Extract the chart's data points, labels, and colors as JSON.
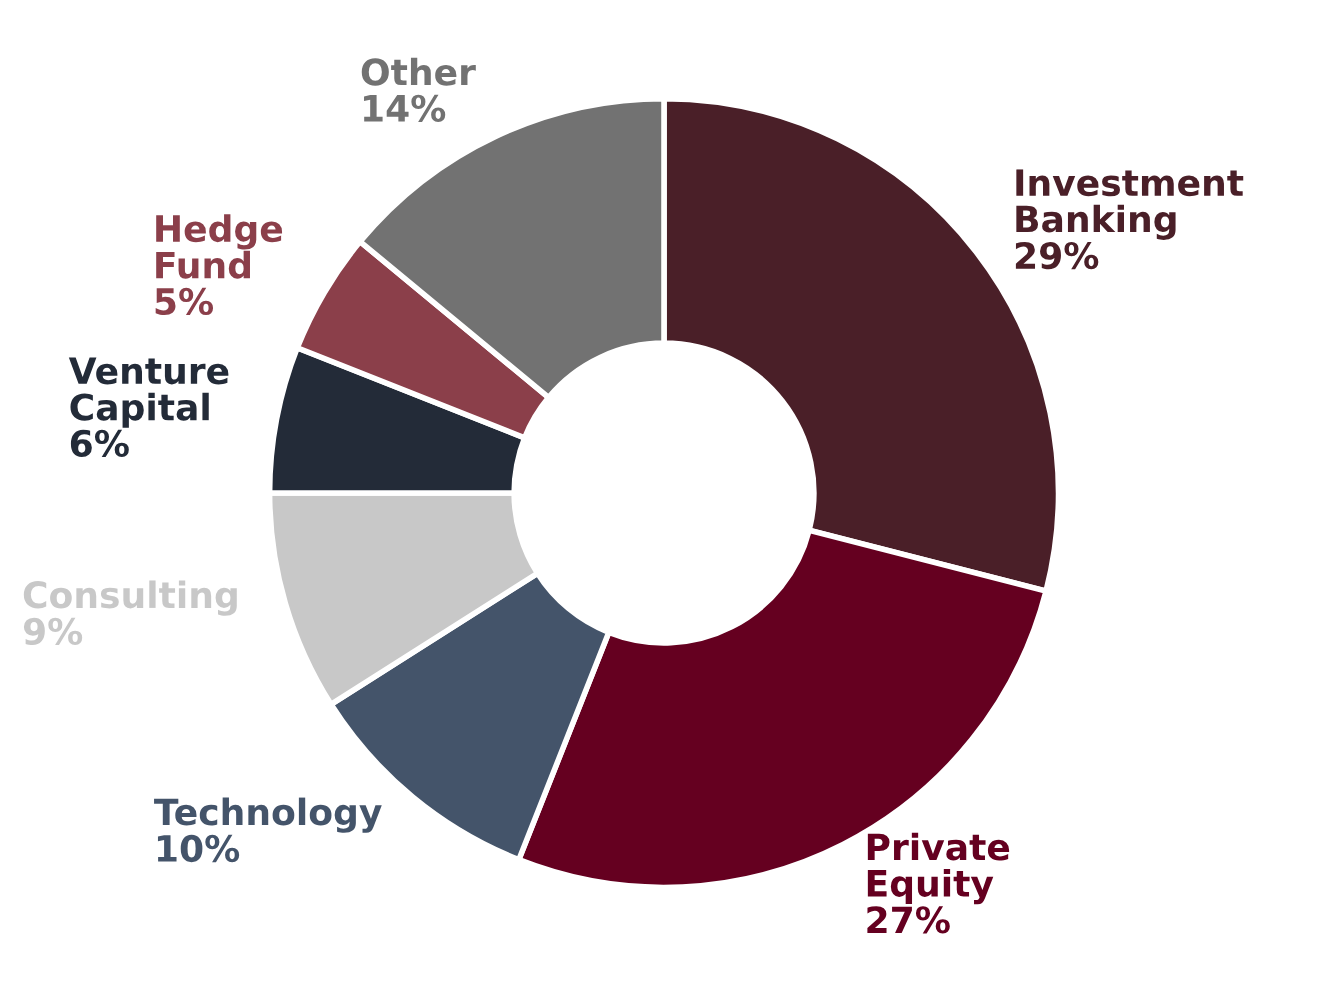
{
  "chart_data": {
    "type": "donut",
    "categories": [
      "Investment Banking",
      "Private Equity",
      "Technology",
      "Consulting",
      "Venture Capital",
      "Hedge Fund",
      "Other"
    ],
    "values": [
      29,
      27,
      10,
      9,
      6,
      5,
      14
    ],
    "value_labels": [
      "29%",
      "27%",
      "10%",
      "9%",
      "6%",
      "5%",
      "14%"
    ],
    "colors": [
      "#4a1f28",
      "#650020",
      "#44546a",
      "#c8c8c8",
      "#232b38",
      "#8b3f4a",
      "#727272"
    ],
    "legend": false
  }
}
